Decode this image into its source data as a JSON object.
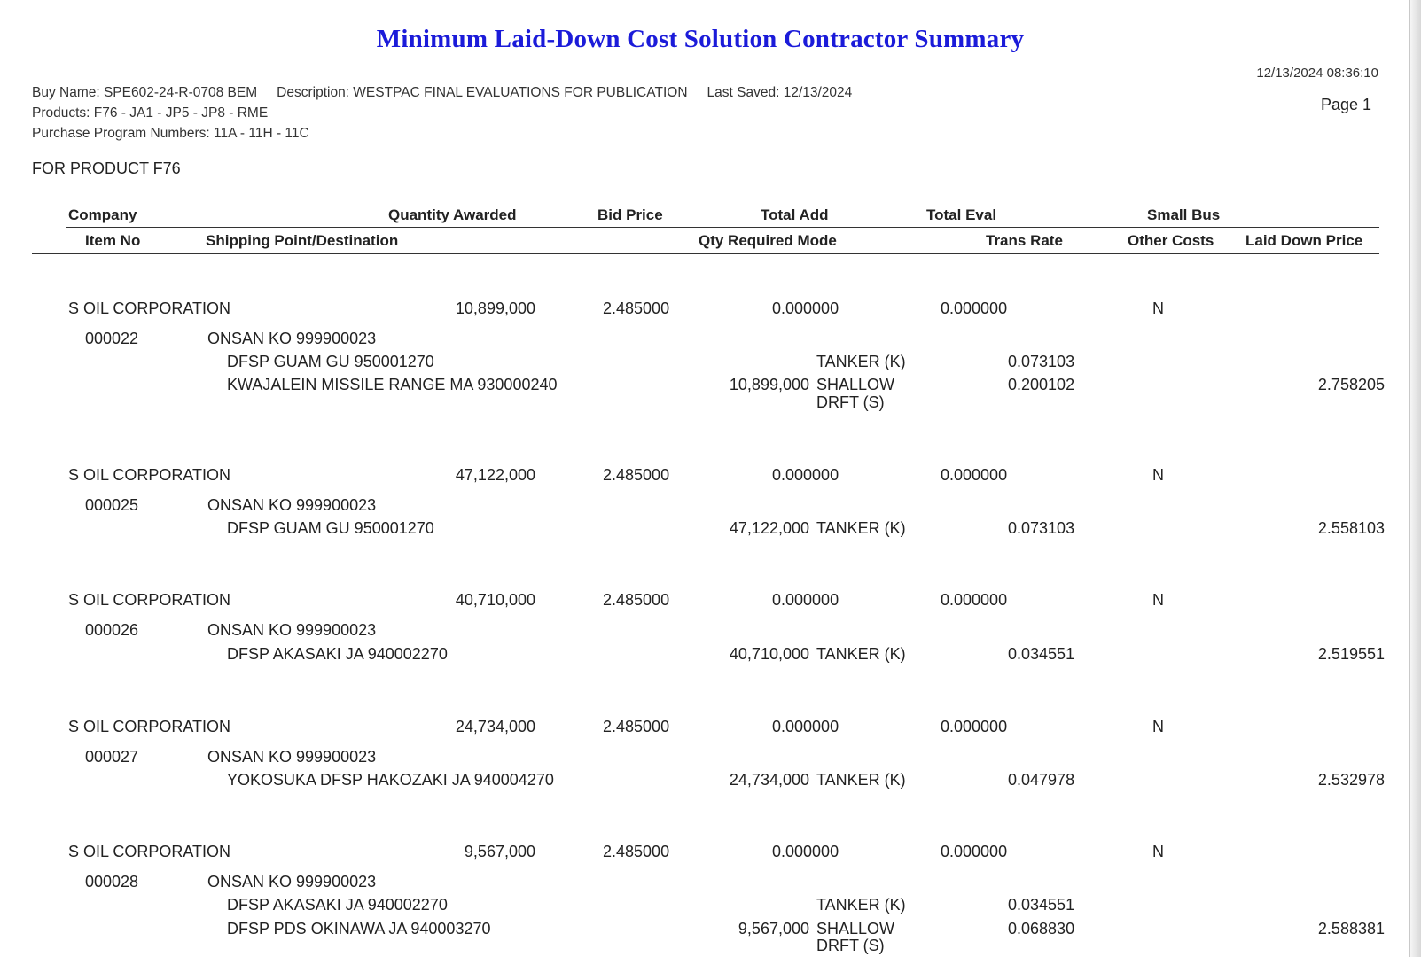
{
  "title": "Minimum Laid-Down Cost Solution Contractor Summary",
  "timestamp": "12/13/2024 08:36:10",
  "page_label": "Page 1",
  "meta": {
    "buy_name": "Buy Name: SPE602-24-R-0708 BEM",
    "description": "Description: WESTPAC FINAL EVALUATIONS FOR PUBLICATION",
    "last_saved": "Last Saved: 12/13/2024",
    "products": "Products: F76 - JA1 - JP5 - JP8 - RME",
    "purchase_programs": "Purchase Program Numbers: 11A - 11H - 11C"
  },
  "product_heading": "FOR PRODUCT F76",
  "headers": {
    "company": "Company",
    "quantity_awarded": "Quantity Awarded",
    "bid_price": "Bid Price",
    "total_add": "Total Add",
    "total_eval": "Total Eval",
    "small_bus": "Small Bus",
    "item_no": "Item No",
    "shipping": "Shipping Point/Destination",
    "qty_required_mode": "Qty Required Mode",
    "trans_rate": "Trans Rate",
    "other_costs": "Other Costs",
    "laid_down_price": "Laid Down Price"
  },
  "entries": [
    {
      "company": "S OIL CORPORATION",
      "quantity": "10,899,000",
      "bid_price": "2.485000",
      "total_add": "0.000000",
      "total_eval": "0.000000",
      "small_bus": "N",
      "item_no": "000022",
      "origin": "ONSAN KO 999900023",
      "dest1": "DFSP GUAM GU 950001270",
      "mode1": "TANKER (K)",
      "rate1": "0.073103",
      "dest2": "KWAJALEIN MISSILE RANGE MA 930000240",
      "qty2": "10,899,000",
      "mode2a": "SHALLOW",
      "mode2b": "DRFT (S)",
      "rate2": "0.200102",
      "laid_down": "2.758205"
    },
    {
      "company": "S OIL CORPORATION",
      "quantity": "47,122,000",
      "bid_price": "2.485000",
      "total_add": "0.000000",
      "total_eval": "0.000000",
      "small_bus": "N",
      "item_no": "000025",
      "origin": "ONSAN KO 999900023",
      "dest1": "DFSP GUAM GU 950001270",
      "qty1": "47,122,000",
      "mode1": "TANKER (K)",
      "rate1": "0.073103",
      "laid_down": "2.558103"
    },
    {
      "company": "S OIL CORPORATION",
      "quantity": "40,710,000",
      "bid_price": "2.485000",
      "total_add": "0.000000",
      "total_eval": "0.000000",
      "small_bus": "N",
      "item_no": "000026",
      "origin": "ONSAN KO 999900023",
      "dest1": "DFSP AKASAKI JA 940002270",
      "qty1": "40,710,000",
      "mode1": "TANKER (K)",
      "rate1": "0.034551",
      "laid_down": "2.519551"
    },
    {
      "company": "S OIL CORPORATION",
      "quantity": "24,734,000",
      "bid_price": "2.485000",
      "total_add": "0.000000",
      "total_eval": "0.000000",
      "small_bus": "N",
      "item_no": "000027",
      "origin": "ONSAN KO 999900023",
      "dest1": "YOKOSUKA DFSP HAKOZAKI JA 940004270",
      "qty1": "24,734,000",
      "mode1": "TANKER (K)",
      "rate1": "0.047978",
      "laid_down": "2.532978"
    },
    {
      "company": "S OIL CORPORATION",
      "quantity": "9,567,000",
      "bid_price": "2.485000",
      "total_add": "0.000000",
      "total_eval": "0.000000",
      "small_bus": "N",
      "item_no": "000028",
      "origin": "ONSAN KO 999900023",
      "dest1": "DFSP AKASAKI JA 940002270",
      "mode1": "TANKER (K)",
      "rate1": "0.034551",
      "dest2": "DFSP PDS OKINAWA JA 940003270",
      "qty2": "9,567,000",
      "mode2a": "SHALLOW",
      "mode2b": "DRFT (S)",
      "rate2": "0.068830",
      "laid_down": "2.588381"
    }
  ]
}
